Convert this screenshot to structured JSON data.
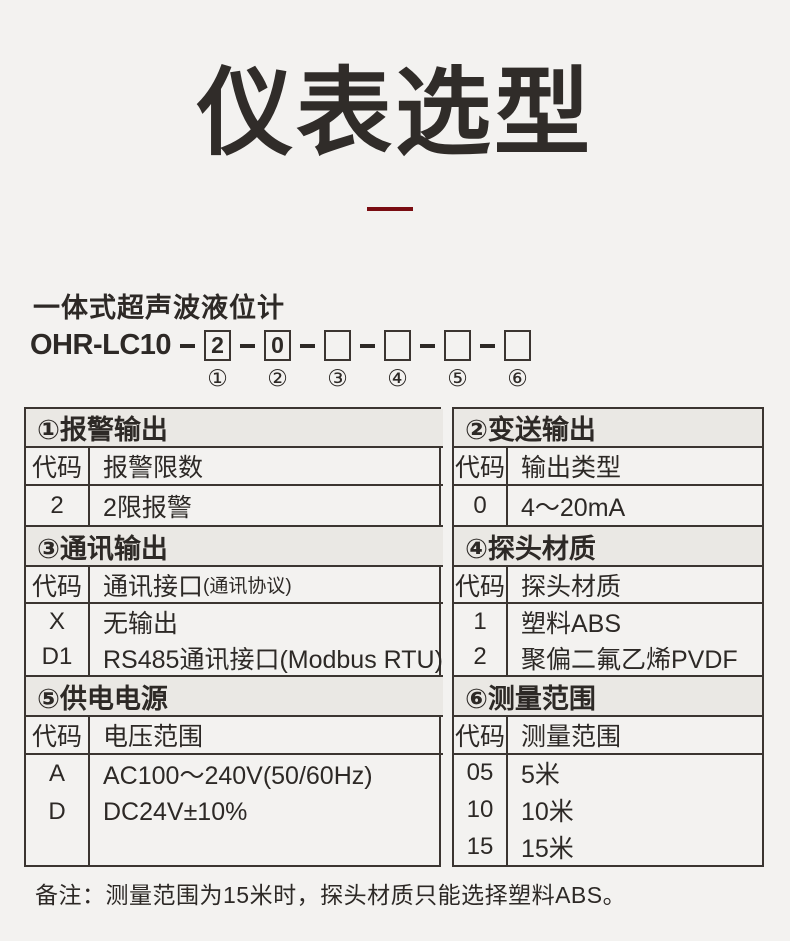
{
  "title": "仪表选型",
  "product_name": "一体式超声波液位计",
  "model": {
    "prefix": "OHR-LC10",
    "slots": [
      {
        "value": "2",
        "label": "①"
      },
      {
        "value": "0",
        "label": "②"
      },
      {
        "value": "",
        "label": "③"
      },
      {
        "value": "",
        "label": "④"
      },
      {
        "value": "",
        "label": "⑤"
      },
      {
        "value": "",
        "label": "⑥"
      }
    ]
  },
  "tables": {
    "left": {
      "sections": [
        {
          "header": "①报警输出",
          "code_h": "代码",
          "desc_h": "报警限数",
          "rows": [
            {
              "code": "2",
              "desc": "2限报警"
            }
          ]
        },
        {
          "header": "③通讯输出",
          "code_h": "代码",
          "desc_h": "通讯接口",
          "desc_h_note": "(通讯协议)",
          "rows": [
            {
              "code": "X",
              "desc": "无输出"
            },
            {
              "code": "D1",
              "desc": "RS485通讯接口(Modbus RTU)"
            }
          ]
        },
        {
          "header": "⑤供电电源",
          "code_h": "代码",
          "desc_h": "电压范围",
          "rows": [
            {
              "code": "A",
              "desc": "AC100～240V(50/60Hz)"
            },
            {
              "code": "D",
              "desc": "DC24V±10%"
            }
          ]
        }
      ]
    },
    "right": {
      "sections": [
        {
          "header": "②变送输出",
          "code_h": "代码",
          "desc_h": "输出类型",
          "rows": [
            {
              "code": "0",
              "desc": "4～20mA"
            }
          ]
        },
        {
          "header": "④探头材质",
          "code_h": "代码",
          "desc_h": "探头材质",
          "rows": [
            {
              "code": "1",
              "desc": "塑料ABS"
            },
            {
              "code": "2",
              "desc": "聚偏二氟乙烯PVDF"
            }
          ]
        },
        {
          "header": "⑥测量范围",
          "code_h": "代码",
          "desc_h": "测量范围",
          "rows": [
            {
              "code": "05",
              "desc": "5米"
            },
            {
              "code": "10",
              "desc": "10米"
            },
            {
              "code": "15",
              "desc": "15米"
            }
          ]
        }
      ]
    }
  },
  "note": "备注：测量范围为15米时，探头材质只能选择塑料ABS。",
  "colors": {
    "accent_red": "#7a0d12",
    "border": "#3b3531",
    "header_bg": "#eae8e4",
    "background": "#f3f2f0",
    "text": "#2d2926"
  }
}
